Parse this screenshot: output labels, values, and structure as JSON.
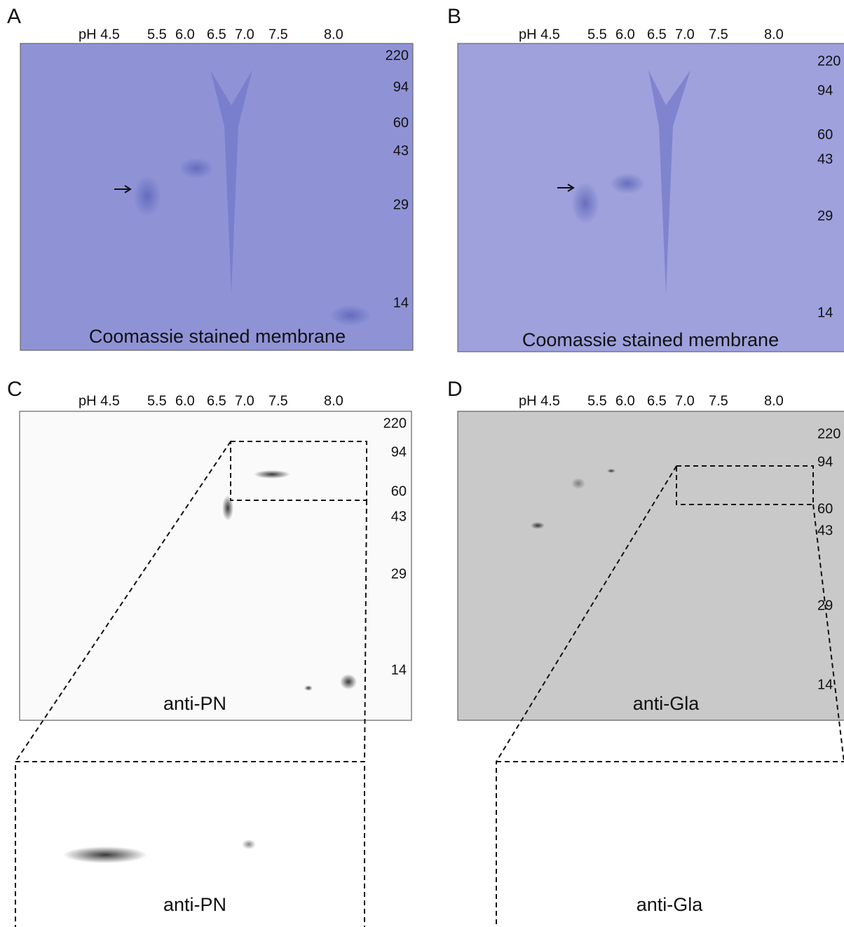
{
  "panels": [
    {
      "label": "A",
      "ph_labels": [
        "pH 4.5",
        "5.5",
        "6.0",
        "6.5",
        "7.0",
        "7.5",
        "8.0"
      ],
      "mw_markers": [
        "220",
        "94",
        "60",
        "43",
        "29",
        "14"
      ],
      "caption": "Coomassie stained membrane"
    },
    {
      "label": "B",
      "ph_labels": [
        "pH 4.5",
        "5.5",
        "6.0",
        "6.5",
        "7.0",
        "7.5",
        "8.0"
      ],
      "mw_markers": [
        "220",
        "94",
        "60",
        "43",
        "29",
        "14"
      ],
      "caption": "Coomassie stained membrane"
    },
    {
      "label": "C",
      "ph_labels": [
        "pH 4.5",
        "5.5",
        "6.0",
        "6.5",
        "7.0",
        "7.5",
        "8.0"
      ],
      "mw_markers": [
        "220",
        "94",
        "60",
        "43",
        "29",
        "14"
      ],
      "caption": "anti-PN"
    },
    {
      "label": "D",
      "ph_labels": [
        "pH 4.5",
        "5.5",
        "6.0",
        "6.5",
        "7.0",
        "7.5",
        "8.0"
      ],
      "mw_markers": [
        "220",
        "94",
        "60",
        "43",
        "29",
        "14"
      ],
      "caption": "anti-Gla"
    }
  ],
  "insets": [
    {
      "caption": "anti-PN"
    },
    {
      "caption": "anti-Gla"
    }
  ]
}
